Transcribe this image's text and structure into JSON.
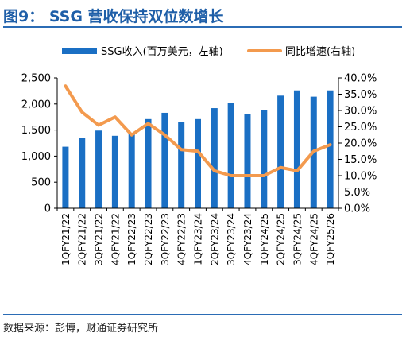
{
  "figure": {
    "title": "图9： SSG 营收保持双位数增长",
    "source": "数据来源：彭博，财通证券研究所"
  },
  "colors": {
    "bar": "#1a6fc4",
    "line": "#f39a4e",
    "rule": "#2b6cb5",
    "title": "#1f5fa8"
  },
  "chart_data": {
    "type": "bar",
    "categories": [
      "1QFY21/22",
      "2QFY21/22",
      "3QFY21/22",
      "4QFY21/22",
      "1QFY22/23",
      "2QFY22/23",
      "3QFY22/23",
      "4QFY22/23",
      "1QFY23/24",
      "2QFY23/24",
      "3QFY23/24",
      "4QFY23/24",
      "1QFY24/25",
      "2QFY24/25",
      "3QFY24/25",
      "4QFY24/25",
      "1QFY25/26"
    ],
    "series": [
      {
        "name": "SSG收入(百万美元，左轴)",
        "type": "bar",
        "axis": "left",
        "values": [
          1180,
          1350,
          1490,
          1390,
          1420,
          1710,
          1830,
          1660,
          1710,
          1920,
          2020,
          1810,
          1880,
          2160,
          2260,
          2140,
          2260
        ]
      },
      {
        "name": "同比增速(右轴)",
        "type": "line",
        "axis": "right",
        "values": [
          37.5,
          29.5,
          25.5,
          28.0,
          22.5,
          26.0,
          22.5,
          18.0,
          17.5,
          11.5,
          10.0,
          10.0,
          10.0,
          12.5,
          11.5,
          17.5,
          19.5
        ]
      }
    ],
    "left_axis": {
      "ylim": [
        0,
        2500
      ],
      "ticks": [
        "0",
        "500",
        "1,000",
        "1,500",
        "2,000",
        "2,500"
      ]
    },
    "right_axis": {
      "ylim": [
        0,
        40
      ],
      "ticks": [
        "0.0%",
        "5.0%",
        "10.0%",
        "15.0%",
        "20.0%",
        "25.0%",
        "30.0%",
        "35.0%",
        "40.0%"
      ]
    },
    "legend_position": "top",
    "grid": false
  }
}
